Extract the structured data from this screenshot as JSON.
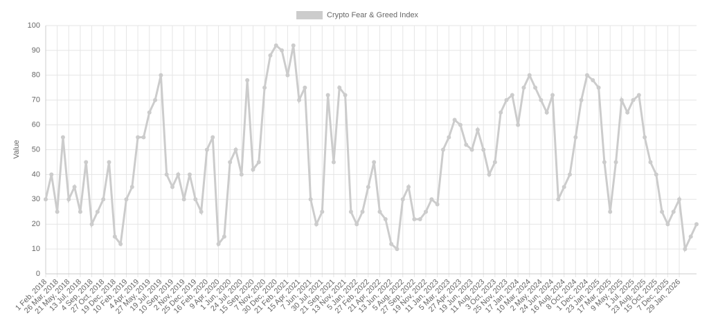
{
  "chart_data": {
    "type": "line",
    "y_label": "Value",
    "categories": [
      "1 Feb, 2018",
      null,
      "26 Mar, 2018",
      null,
      "21 May, 2018",
      null,
      "13 Jul, 2018",
      null,
      "4 Sep, 2018",
      null,
      "27 Oct, 2018",
      null,
      "19 Dec, 2018",
      null,
      "10 Feb, 2019",
      null,
      "4 Apr, 2019",
      null,
      "27 May, 2019",
      null,
      "19 Jul, 2019",
      null,
      "10 Sep, 2019",
      null,
      "2 Nov, 2019",
      null,
      "25 Dec, 2019",
      null,
      "16 Feb, 2020",
      null,
      "9 Apr, 2020",
      null,
      "1 Jun, 2020",
      null,
      "24 Jul, 2020",
      null,
      "15 Sep, 2020",
      null,
      "7 Nov, 2020",
      null,
      "30 Dec, 2020",
      null,
      "21 Feb, 2021",
      null,
      "15 Apr, 2021",
      null,
      "7 Jun, 2021",
      null,
      "30 Jul, 2021",
      null,
      "21 Sep, 2021",
      null,
      "13 Nov, 2021",
      null,
      "5 Jan, 2022",
      null,
      "27 Feb, 2022",
      null,
      "21 Apr, 2022",
      null,
      "13 Jun, 2022",
      null,
      "5 Aug, 2022",
      null,
      "27 Sep, 2022",
      null,
      "19 Nov, 2022",
      null,
      "11 Jan, 2023",
      null,
      "5 Mar, 2023",
      null,
      "27 Apr, 2023",
      null,
      "19 Jun, 2023",
      null,
      "11 Aug, 2023",
      null,
      "3 Oct, 2023",
      null,
      "25 Nov, 2023",
      null,
      "17 Jan, 2024",
      null,
      "10 Mar, 2024",
      null,
      "2 May, 2024",
      null,
      "24 Jun, 2024",
      null,
      "16 Aug, 2024",
      null,
      "8 Oct, 2024",
      null,
      "1 Dec, 2024",
      null,
      "23 Jan, 2025",
      null,
      "17 Mar, 2025",
      null,
      "9 May, 2025",
      null,
      "1 Jul, 2025",
      null,
      "23 Aug, 2025",
      null,
      "15 Oct, 2025",
      null,
      "7 Dec, 2025",
      null,
      "29 Jan, 2026",
      null,
      null,
      null
    ],
    "series": [
      {
        "name": "Crypto Fear & Greed Index",
        "color": "#cccccc",
        "values": [
          30,
          40,
          25,
          55,
          30,
          35,
          25,
          45,
          20,
          25,
          30,
          45,
          15,
          12,
          30,
          35,
          55,
          55,
          65,
          70,
          80,
          40,
          35,
          40,
          30,
          40,
          30,
          25,
          50,
          55,
          12,
          15,
          45,
          50,
          40,
          78,
          42,
          45,
          75,
          88,
          92,
          90,
          80,
          92,
          70,
          75,
          30,
          20,
          25,
          72,
          45,
          75,
          72,
          25,
          20,
          25,
          35,
          45,
          25,
          22,
          12,
          10,
          30,
          35,
          22,
          22,
          25,
          30,
          28,
          50,
          55,
          62,
          60,
          52,
          50,
          58,
          50,
          40,
          45,
          65,
          70,
          72,
          60,
          75,
          80,
          75,
          70,
          65,
          72,
          30,
          35,
          40,
          55,
          70,
          80,
          78,
          75,
          45,
          25,
          45,
          70,
          65,
          70,
          72,
          55,
          45,
          40,
          25,
          20,
          25,
          30,
          10,
          15,
          20
        ]
      }
    ],
    "ylim": [
      0,
      100
    ],
    "yticks": [
      0,
      10,
      20,
      30,
      40,
      50,
      60,
      70,
      80,
      90,
      100
    ],
    "grid": true,
    "legend": "top"
  }
}
